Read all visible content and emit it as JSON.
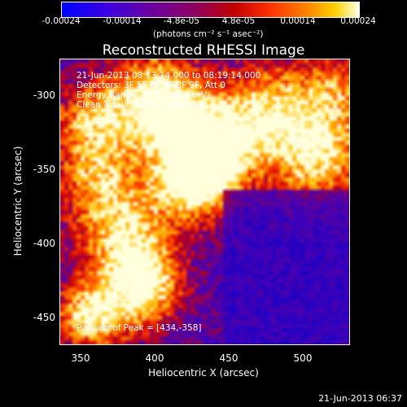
{
  "colorbar": {
    "ticks": [
      "-0.00024",
      "-0.00014",
      "-4.8e-05",
      "4.8e-05",
      "0.00014",
      "0.00024"
    ],
    "units": "(photons cm⁻² s⁻¹ asec⁻²)"
  },
  "title": "Reconstructed RHESSI Image",
  "annotations": {
    "time_range": "21-Jun-2013 08:13:14.000 to 08:19:14.000",
    "detectors": "Detectors: 3F 5F 6F 7F 8F 9F, Att 0",
    "energy": "Energy Range: 25.0 - 50.0 keV",
    "method": "Clean    Total counts: 9.58E+03",
    "peak": "Position of Peak = [434,-358]"
  },
  "axes": {
    "xlabel": "Heliocentric X (arcsec)",
    "ylabel": "Heliocentric Y (arcsec)",
    "xticks": [
      "350",
      "400",
      "450",
      "500"
    ],
    "yticks": [
      "-300",
      "-350",
      "-400",
      "-450"
    ]
  },
  "footer": "21-Jun-2013 06:37"
}
